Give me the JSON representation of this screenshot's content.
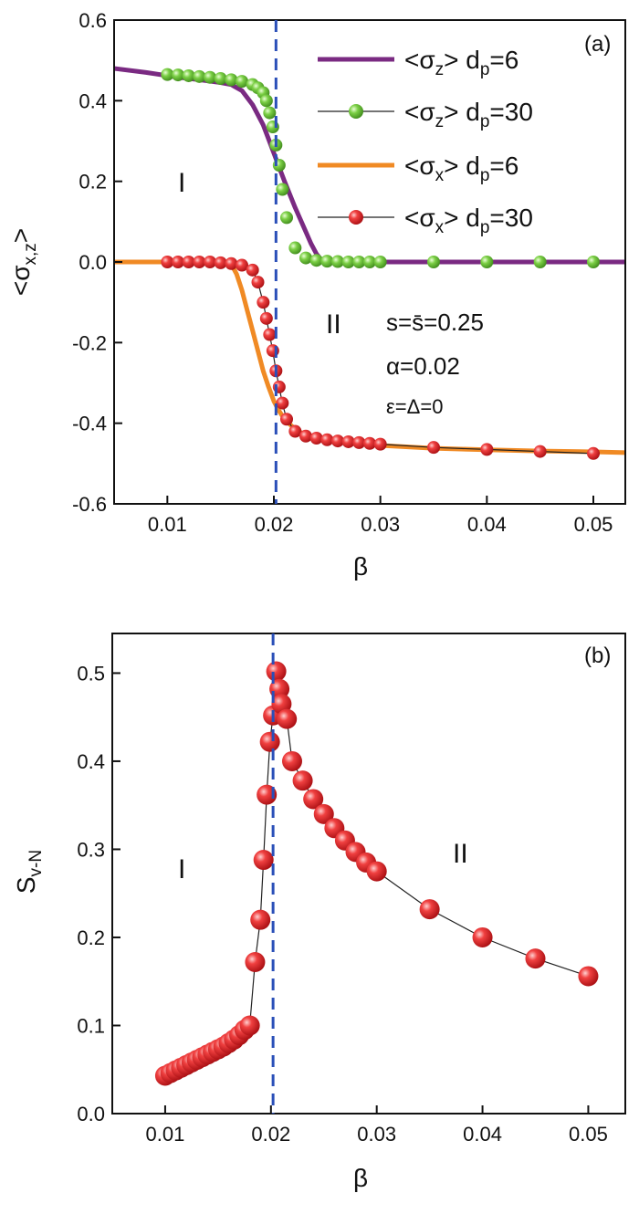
{
  "chart_data": [
    {
      "type": "line",
      "panel_label": "(a)",
      "xlabel": "β",
      "ylabel": "<σx,z>",
      "ylabel_main": "<σ",
      "ylabel_sub": "x,z",
      "ylabel_end": ">",
      "xlim": [
        0.005,
        0.053
      ],
      "ylim": [
        -0.6,
        0.6
      ],
      "xticks": [
        0.01,
        0.02,
        0.03,
        0.04,
        0.05
      ],
      "xtick_labels": [
        "0.01",
        "0.02",
        "0.03",
        "0.04",
        "0.05"
      ],
      "yticks": [
        0.6,
        0.4,
        0.2,
        0.0,
        -0.2,
        -0.4,
        -0.6
      ],
      "ytick_labels": [
        "0.6",
        "0.4",
        "0.2",
        "0.0",
        "-0.2",
        "-0.4",
        "-0.6"
      ],
      "vline_x": 0.0202,
      "regions": [
        "I",
        "II"
      ],
      "annotations": [
        "s=s̄=0.25",
        "α=0.02",
        "ε=Δ=0"
      ],
      "legend_position": "top-right",
      "series": [
        {
          "name": "<σz> dp=6",
          "legend_main": "<σ",
          "legend_sub1": "z",
          "legend_mid": "> d",
          "legend_sub2": "p",
          "legend_end": "=6",
          "color": "#7a2a82",
          "style": "line",
          "x": [
            0.005,
            0.008,
            0.011,
            0.013,
            0.015,
            0.016,
            0.017,
            0.018,
            0.019,
            0.0195,
            0.02,
            0.0205,
            0.021,
            0.022,
            0.023,
            0.0235,
            0.024,
            0.0245,
            0.025,
            0.03,
            0.035,
            0.04,
            0.045,
            0.05,
            0.053
          ],
          "y": [
            0.48,
            0.47,
            0.458,
            0.452,
            0.445,
            0.44,
            0.425,
            0.39,
            0.34,
            0.305,
            0.27,
            0.235,
            0.2,
            0.135,
            0.075,
            0.045,
            0.02,
            0.004,
            0.0,
            0.0,
            0.0,
            0.0,
            0.0,
            0.0,
            0.0
          ]
        },
        {
          "name": "<σz> dp=30",
          "legend_main": "<σ",
          "legend_sub1": "z",
          "legend_mid": "> d",
          "legend_sub2": "p",
          "legend_end": "=30",
          "color": "#6cbf3c",
          "style": "markers",
          "x": [
            0.01,
            0.011,
            0.012,
            0.013,
            0.014,
            0.015,
            0.016,
            0.017,
            0.018,
            0.0185,
            0.019,
            0.0193,
            0.0196,
            0.0199,
            0.0202,
            0.0205,
            0.0208,
            0.0212,
            0.022,
            0.023,
            0.024,
            0.025,
            0.026,
            0.027,
            0.028,
            0.029,
            0.03,
            0.035,
            0.04,
            0.045,
            0.05
          ],
          "y": [
            0.465,
            0.464,
            0.462,
            0.46,
            0.458,
            0.455,
            0.452,
            0.448,
            0.44,
            0.432,
            0.42,
            0.4,
            0.37,
            0.335,
            0.29,
            0.24,
            0.18,
            0.11,
            0.035,
            0.01,
            0.004,
            0.002,
            0.001,
            0.0,
            0.0,
            0.0,
            0.0,
            0.0,
            0.0,
            0.0,
            0.0
          ]
        },
        {
          "name": "<σx> dp=6",
          "legend_main": "<σ",
          "legend_sub1": "x",
          "legend_mid": "> d",
          "legend_sub2": "p",
          "legend_end": "=6",
          "color": "#f08a24",
          "style": "line",
          "x": [
            0.005,
            0.01,
            0.015,
            0.016,
            0.0165,
            0.017,
            0.0175,
            0.018,
            0.0185,
            0.019,
            0.0195,
            0.02,
            0.0205,
            0.021,
            0.022,
            0.023,
            0.024,
            0.025,
            0.027,
            0.03,
            0.035,
            0.04,
            0.045,
            0.05,
            0.053
          ],
          "y": [
            0.0,
            0.0,
            0.0,
            -0.005,
            -0.03,
            -0.07,
            -0.12,
            -0.17,
            -0.22,
            -0.27,
            -0.31,
            -0.345,
            -0.37,
            -0.39,
            -0.415,
            -0.43,
            -0.438,
            -0.443,
            -0.45,
            -0.455,
            -0.462,
            -0.466,
            -0.469,
            -0.471,
            -0.473
          ]
        },
        {
          "name": "<σx> dp=30",
          "legend_main": "<σ",
          "legend_sub1": "x",
          "legend_mid": "> d",
          "legend_sub2": "p",
          "legend_end": "=30",
          "color": "#e0282c",
          "style": "line+markers",
          "x": [
            0.01,
            0.011,
            0.012,
            0.013,
            0.014,
            0.015,
            0.016,
            0.017,
            0.018,
            0.0185,
            0.019,
            0.0193,
            0.0196,
            0.0199,
            0.0202,
            0.0205,
            0.0208,
            0.0212,
            0.022,
            0.023,
            0.024,
            0.025,
            0.026,
            0.027,
            0.028,
            0.029,
            0.03,
            0.035,
            0.04,
            0.045,
            0.05
          ],
          "y": [
            0.0,
            0.0,
            0.0,
            0.0,
            0.0,
            -0.002,
            -0.004,
            -0.008,
            -0.02,
            -0.05,
            -0.1,
            -0.14,
            -0.18,
            -0.22,
            -0.27,
            -0.31,
            -0.35,
            -0.39,
            -0.42,
            -0.432,
            -0.437,
            -0.441,
            -0.444,
            -0.446,
            -0.448,
            -0.45,
            -0.452,
            -0.46,
            -0.465,
            -0.47,
            -0.475
          ]
        }
      ]
    },
    {
      "type": "line",
      "panel_label": "(b)",
      "xlabel": "β",
      "ylabel": "Sv-N",
      "ylabel_main": "S",
      "ylabel_sub": "v-N",
      "xlim": [
        0.005,
        0.0535
      ],
      "ylim": [
        0.0,
        0.545
      ],
      "xticks": [
        0.01,
        0.02,
        0.03,
        0.04,
        0.05
      ],
      "xtick_labels": [
        "0.01",
        "0.02",
        "0.03",
        "0.04",
        "0.05"
      ],
      "yticks": [
        0.0,
        0.1,
        0.2,
        0.3,
        0.4,
        0.5
      ],
      "ytick_labels": [
        "0.0",
        "0.1",
        "0.2",
        "0.3",
        "0.4",
        "0.5"
      ],
      "vline_x": 0.0202,
      "regions": [
        "I",
        "II"
      ],
      "series": [
        {
          "color": "#e0282c",
          "style": "line+markers",
          "x": [
            0.01,
            0.0105,
            0.011,
            0.0115,
            0.012,
            0.0125,
            0.013,
            0.0135,
            0.014,
            0.0145,
            0.015,
            0.0155,
            0.016,
            0.0165,
            0.017,
            0.0175,
            0.018,
            0.0185,
            0.019,
            0.0193,
            0.0196,
            0.0199,
            0.0202,
            0.0205,
            0.0208,
            0.021,
            0.0215,
            0.022,
            0.023,
            0.024,
            0.025,
            0.026,
            0.027,
            0.028,
            0.029,
            0.03,
            0.035,
            0.04,
            0.045,
            0.05
          ],
          "y": [
            0.043,
            0.046,
            0.049,
            0.052,
            0.055,
            0.058,
            0.061,
            0.064,
            0.067,
            0.07,
            0.073,
            0.076,
            0.08,
            0.084,
            0.089,
            0.095,
            0.1,
            0.172,
            0.22,
            0.288,
            0.362,
            0.422,
            0.452,
            0.502,
            0.482,
            0.465,
            0.448,
            0.4,
            0.378,
            0.357,
            0.34,
            0.324,
            0.31,
            0.297,
            0.285,
            0.275,
            0.232,
            0.2,
            0.176,
            0.156
          ]
        }
      ]
    }
  ]
}
